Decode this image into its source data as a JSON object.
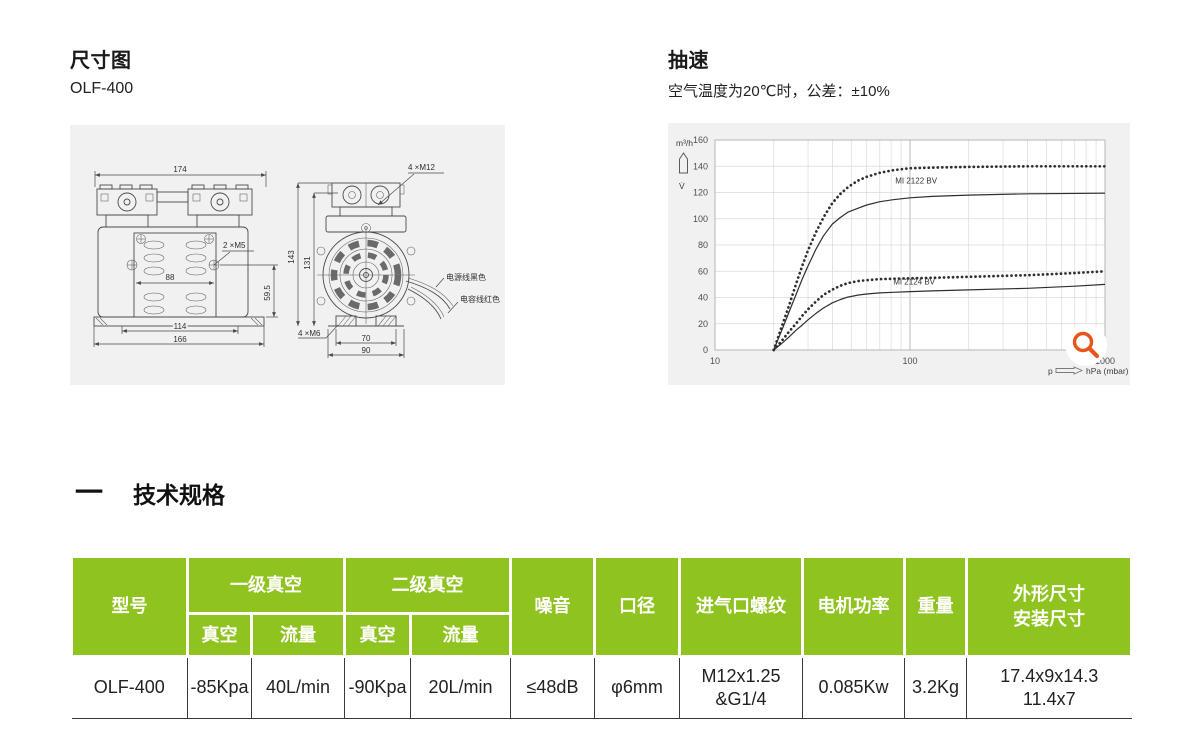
{
  "colors": {
    "accent_green": "#8fc31f",
    "magnifier_orange": "#e8551b",
    "panel_gray": "#f1f1f1"
  },
  "sections": {
    "dimension": {
      "title": "尺寸图",
      "model": "OLF-400"
    },
    "speed": {
      "title": "抽速",
      "subtitle": "空气温度为20℃时，公差：±10%"
    },
    "specs": {
      "marker": "一",
      "title": "技术规格"
    }
  },
  "drawing": {
    "front": {
      "dim_top": "174",
      "dim_mid": "88",
      "dim_base_inner": "114",
      "dim_base_outer": "166",
      "dim_side": "59.5",
      "screw_note": "2 ×M5"
    },
    "side": {
      "dim_height": "143",
      "dim_height_inner": "131",
      "screw_top": "4 ×M12",
      "screw_bottom": "4 ×M6",
      "dim_foot_inner": "70",
      "dim_foot_outer": "90",
      "wire_power": "电源线黑色",
      "wire_capacitor": "电容线红色"
    }
  },
  "chart_data": {
    "type": "line",
    "x_scale": "log",
    "xlim": [
      10,
      1000
    ],
    "ylim": [
      0,
      160
    ],
    "x_ticks": [
      10,
      100,
      1000
    ],
    "y_ticks": [
      0,
      20,
      40,
      60,
      80,
      100,
      120,
      140,
      160
    ],
    "grid": true,
    "legend_position": "inline-annotations",
    "ylabel": "m³/h",
    "ylabel_symbol": "V̇",
    "xlabel_p": "p",
    "xlabel_unit": "hPa (mbar)",
    "series": [
      {
        "name": "MI 2122 BV (dotted)",
        "style": "dotted",
        "points": [
          [
            20,
            0
          ],
          [
            22,
            18
          ],
          [
            24,
            34
          ],
          [
            26,
            50
          ],
          [
            28,
            64
          ],
          [
            30,
            76
          ],
          [
            33,
            90
          ],
          [
            36,
            101
          ],
          [
            40,
            112
          ],
          [
            44,
            119
          ],
          [
            48,
            124
          ],
          [
            54,
            129
          ],
          [
            60,
            132
          ],
          [
            70,
            135
          ],
          [
            82,
            137
          ],
          [
            100,
            138.5
          ],
          [
            130,
            139
          ],
          [
            200,
            139.5
          ],
          [
            400,
            140
          ],
          [
            1000,
            140
          ]
        ]
      },
      {
        "name": "MI 2122 BV (solid)",
        "style": "solid",
        "points": [
          [
            20,
            0
          ],
          [
            22,
            15
          ],
          [
            24,
            29
          ],
          [
            26,
            42
          ],
          [
            28,
            54
          ],
          [
            30,
            64
          ],
          [
            33,
            77
          ],
          [
            36,
            87
          ],
          [
            40,
            96
          ],
          [
            44,
            101
          ],
          [
            48,
            105
          ],
          [
            54,
            108
          ],
          [
            60,
            110.5
          ],
          [
            70,
            113
          ],
          [
            82,
            114.5
          ],
          [
            100,
            116
          ],
          [
            130,
            117
          ],
          [
            200,
            118
          ],
          [
            400,
            119
          ],
          [
            1000,
            119.5
          ]
        ]
      },
      {
        "name": "MI 2124 BV (dotted)",
        "style": "dotted",
        "points": [
          [
            20,
            0
          ],
          [
            22,
            7
          ],
          [
            24,
            14
          ],
          [
            26,
            20
          ],
          [
            28,
            26
          ],
          [
            30,
            31
          ],
          [
            33,
            37
          ],
          [
            36,
            42
          ],
          [
            40,
            46
          ],
          [
            44,
            49
          ],
          [
            48,
            51
          ],
          [
            54,
            52.5
          ],
          [
            60,
            53.2
          ],
          [
            70,
            54
          ],
          [
            82,
            54.3
          ],
          [
            100,
            54.6
          ],
          [
            130,
            55
          ],
          [
            200,
            55.8
          ],
          [
            400,
            57
          ],
          [
            700,
            58.7
          ],
          [
            1000,
            60
          ]
        ]
      },
      {
        "name": "MI 2124 BV (solid)",
        "style": "solid",
        "points": [
          [
            20,
            0
          ],
          [
            22,
            5
          ],
          [
            24,
            10
          ],
          [
            26,
            15
          ],
          [
            28,
            19
          ],
          [
            30,
            23
          ],
          [
            33,
            28
          ],
          [
            36,
            32
          ],
          [
            40,
            36
          ],
          [
            44,
            38.5
          ],
          [
            48,
            40.3
          ],
          [
            54,
            41.8
          ],
          [
            60,
            42.7
          ],
          [
            70,
            43.5
          ],
          [
            82,
            44
          ],
          [
            100,
            44.5
          ],
          [
            130,
            45
          ],
          [
            200,
            45.8
          ],
          [
            400,
            47
          ],
          [
            700,
            48.6
          ],
          [
            1000,
            50
          ]
        ]
      }
    ],
    "annotations": [
      {
        "text": "MI 2122 BV",
        "x": 84,
        "y": 127
      },
      {
        "text": "MI 2124 BV",
        "x": 82,
        "y": 50
      }
    ]
  },
  "table": {
    "headers": {
      "model": "型号",
      "stage1": "一级真空",
      "stage2": "二级真空",
      "vacuum": "真空",
      "flow": "流量",
      "noise": "噪音",
      "port": "口径",
      "thread": "进气口螺纹",
      "power": "电机功率",
      "weight": "重量",
      "dims_line1": "外形尺寸",
      "dims_line2": "安装尺寸"
    },
    "row": {
      "model": "OLF-400",
      "stage1_vacuum": "-85Kpa",
      "stage1_flow": "40L/min",
      "stage2_vacuum": "-90Kpa",
      "stage2_flow": "20L/min",
      "noise": "≤48dB",
      "port": "φ6mm",
      "thread_line1": "M12x1.25",
      "thread_line2": "&G1/4",
      "power": "0.085Kw",
      "weight": "3.2Kg",
      "dims_line1": "17.4x9x14.3",
      "dims_line2": "11.4x7"
    }
  }
}
